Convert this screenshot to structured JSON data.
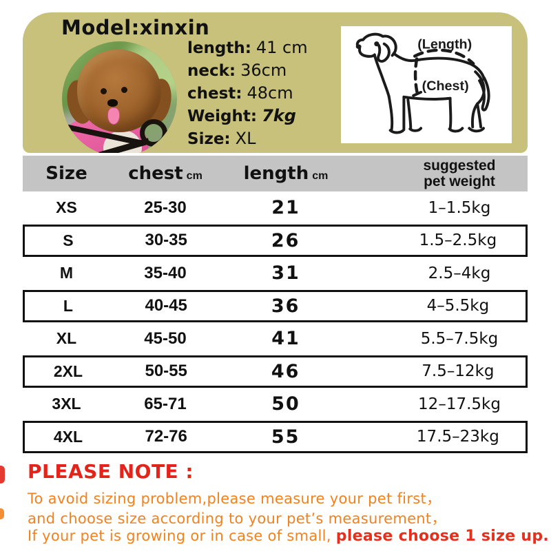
{
  "colors": {
    "olive": "#c7c17b",
    "headerGray": "#c4c4c4",
    "noteRed": "#e1251b",
    "noteOrange": "#f08220",
    "noteEmphasis": "#e4301d",
    "ink": "#111111",
    "jacketPink": "#e8569a"
  },
  "header": {
    "model_label": "Model:xinxin",
    "measurements": [
      {
        "label": "length:",
        "value": "41 cm",
        "italic": false
      },
      {
        "label": "neck:",
        "value": "36cm",
        "italic": false
      },
      {
        "label": "chest:",
        "value": "48cm",
        "italic": false
      },
      {
        "label": "Weight:",
        "value": "7kg",
        "italic": true
      },
      {
        "label": "Size:",
        "value": "XL",
        "italic": false
      }
    ],
    "diagram": {
      "length_label": "(Length)",
      "chest_label": "(Chest)"
    }
  },
  "table": {
    "columns": [
      {
        "label": "Size",
        "unit": ""
      },
      {
        "label": "chest",
        "unit": "cm"
      },
      {
        "label": "length",
        "unit": "cm"
      },
      {
        "label": "suggested pet weight",
        "unit": ""
      }
    ],
    "rows": [
      {
        "size": "XS",
        "chest": "25-30",
        "length": "21",
        "weight": "1–1.5kg",
        "boxed": false
      },
      {
        "size": "S",
        "chest": "30-35",
        "length": "26",
        "weight": "1.5–2.5kg",
        "boxed": true
      },
      {
        "size": "M",
        "chest": "35-40",
        "length": "31",
        "weight": "2.5–4kg",
        "boxed": false
      },
      {
        "size": "L",
        "chest": "40-45",
        "length": "36",
        "weight": "4–5.5kg",
        "boxed": true
      },
      {
        "size": "XL",
        "chest": "45-50",
        "length": "41",
        "weight": "5.5–7.5kg",
        "boxed": false
      },
      {
        "size": "2XL",
        "chest": "50-55",
        "length": "46",
        "weight": "7.5–12kg",
        "boxed": true
      },
      {
        "size": "3XL",
        "chest": "65-71",
        "length": "50",
        "weight": "12–17.5kg",
        "boxed": false
      },
      {
        "size": "4XL",
        "chest": "72-76",
        "length": "55",
        "weight": "17.5–23kg",
        "boxed": true
      }
    ]
  },
  "note": {
    "title": "PLEASE NOTE :",
    "lines": [
      [
        {
          "text": "To avoid sizing problem,please measure your pet first，",
          "color": "orange"
        }
      ],
      [
        {
          "text": "and choose size according to your pet’s measurement，",
          "color": "orange"
        }
      ],
      [
        {
          "text": "If your pet is growing or in case of small, ",
          "color": "orange"
        },
        {
          "text": "please choose 1 size up.",
          "color": "red"
        }
      ]
    ]
  },
  "chart_data": {
    "type": "table",
    "title": "Pet clothing size chart (model xinxin: length 41 cm, neck 36cm, chest 48cm, weight 7kg, size XL)",
    "columns": [
      "Size",
      "chest cm",
      "length cm",
      "suggested pet weight"
    ],
    "rows": [
      [
        "XS",
        "25-30",
        "21",
        "1–1.5kg"
      ],
      [
        "S",
        "30-35",
        "26",
        "1.5–2.5kg"
      ],
      [
        "M",
        "35-40",
        "31",
        "2.5–4kg"
      ],
      [
        "L",
        "40-45",
        "36",
        "4–5.5kg"
      ],
      [
        "XL",
        "45-50",
        "41",
        "5.5–7.5kg"
      ],
      [
        "2XL",
        "50-55",
        "46",
        "7.5–12kg"
      ],
      [
        "3XL",
        "65-71",
        "50",
        "12–17.5kg"
      ],
      [
        "4XL",
        "72-76",
        "55",
        "17.5–23kg"
      ]
    ]
  }
}
